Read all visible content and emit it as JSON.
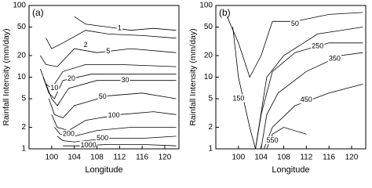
{
  "chart_data": [
    {
      "type": "contour",
      "panel_label": "(a)",
      "xlabel": "Longitude",
      "ylabel": "Rainfall Intensity (mm/day)",
      "xlim": [
        96,
        122.5
      ],
      "xticks": [
        100,
        104,
        108,
        112,
        116,
        120
      ],
      "ylim": [
        1,
        100
      ],
      "yticks": [
        1,
        2,
        5,
        10,
        20,
        50,
        100
      ],
      "log_y": true,
      "contours": [
        {
          "level": 1,
          "x": [
            104,
            106,
            110,
            114,
            118,
            122
          ],
          "y": [
            70,
            55,
            50,
            45,
            48,
            45
          ]
        },
        {
          "level": 2,
          "x": [
            99,
            100,
            102,
            106,
            110,
            116,
            122
          ],
          "y": [
            35,
            25,
            30,
            45,
            40,
            38,
            35
          ]
        },
        {
          "level": 5,
          "x": [
            98,
            99,
            101,
            104,
            108,
            114,
            122
          ],
          "y": [
            20,
            15,
            14,
            25,
            22,
            25,
            22
          ]
        },
        {
          "level": 10,
          "x": [
            98,
            99,
            100,
            102,
            106,
            112,
            122
          ],
          "y": [
            13,
            8,
            7,
            12,
            15,
            15,
            14
          ]
        },
        {
          "level": 20,
          "x": [
            98.5,
            99.5,
            100.5,
            102,
            107,
            113,
            122
          ],
          "y": [
            10,
            6,
            5,
            9,
            11,
            11,
            11
          ]
        },
        {
          "level": 30,
          "x": [
            99,
            100,
            101,
            103,
            108,
            114,
            122
          ],
          "y": [
            8,
            5,
            4,
            7,
            9,
            9,
            9
          ]
        },
        {
          "level": 50,
          "x": [
            99.5,
            100.5,
            102,
            104,
            110,
            116,
            122
          ],
          "y": [
            5,
            3,
            2.7,
            4,
            5.5,
            6,
            5
          ]
        },
        {
          "level": 100,
          "x": [
            100,
            101,
            103,
            106,
            112,
            118,
            122
          ],
          "y": [
            3,
            2,
            1.8,
            2.5,
            3,
            3.3,
            3
          ]
        },
        {
          "level": 200,
          "x": [
            100.5,
            101.5,
            104,
            108,
            114,
            120,
            122
          ],
          "y": [
            2,
            1.6,
            1.5,
            1.8,
            2,
            2,
            2
          ]
        },
        {
          "level": 500,
          "x": [
            101,
            102,
            104,
            110,
            116,
            122
          ],
          "y": [
            1.5,
            1.3,
            1.25,
            1.4,
            1.4,
            1.5
          ]
        },
        {
          "level": 1000,
          "x": [
            102,
            105,
            110,
            116,
            122
          ],
          "y": [
            1.1,
            1.1,
            1.15,
            1.15,
            1.1
          ]
        }
      ],
      "contour_labels": [
        {
          "value": 1,
          "x": 112,
          "y": 48
        },
        {
          "value": 2,
          "x": 106,
          "y": 28
        },
        {
          "value": 5,
          "x": 110,
          "y": 23
        },
        {
          "value": 10,
          "x": 100.5,
          "y": 7
        },
        {
          "value": 20,
          "x": 103.5,
          "y": 9.5
        },
        {
          "value": 30,
          "x": 113,
          "y": 9
        },
        {
          "value": 50,
          "x": 109,
          "y": 5.3
        },
        {
          "value": 100,
          "x": 111,
          "y": 2.9
        },
        {
          "value": 200,
          "x": 103,
          "y": 1.6
        },
        {
          "value": 500,
          "x": 109,
          "y": 1.4
        },
        {
          "value": 1000,
          "x": 106.5,
          "y": 1.12
        }
      ]
    },
    {
      "type": "contour",
      "panel_label": "(b)",
      "xlabel": "Longitude",
      "ylabel": "Rainfall Intensity (mm/day)",
      "xlim": [
        96,
        122.5
      ],
      "xticks": [
        100,
        104,
        108,
        112,
        116,
        120
      ],
      "ylim": [
        1,
        100
      ],
      "yticks": [
        1,
        2,
        5,
        10,
        20,
        50,
        100
      ],
      "log_y": true,
      "contours": [
        {
          "level": 50,
          "x": [
            98,
            100,
            102,
            104,
            106,
            110,
            116,
            122
          ],
          "y": [
            70,
            30,
            10,
            20,
            60,
            60,
            75,
            80
          ]
        },
        {
          "level": 150,
          "x": [
            99,
            100,
            102,
            103,
            105,
            108,
            114,
            122
          ],
          "y": [
            50,
            10,
            2,
            1,
            10,
            20,
            40,
            50
          ]
        },
        {
          "level": 250,
          "x": [
            103,
            104,
            106,
            110,
            116,
            122
          ],
          "y": [
            1,
            3,
            12,
            22,
            30,
            30
          ]
        },
        {
          "level": 350,
          "x": [
            104,
            105,
            107,
            112,
            118,
            122
          ],
          "y": [
            1,
            3,
            6,
            12,
            20,
            22
          ]
        },
        {
          "level": 450,
          "x": [
            104.5,
            106,
            110,
            116,
            122
          ],
          "y": [
            1,
            2,
            4,
            6,
            8
          ]
        },
        {
          "level": 550,
          "x": [
            105,
            106,
            108,
            112
          ],
          "y": [
            1,
            1.6,
            2,
            1.6
          ]
        }
      ],
      "contour_labels": [
        {
          "value": 50,
          "x": 110,
          "y": 55
        },
        {
          "value": 150,
          "x": 100,
          "y": 5
        },
        {
          "value": 250,
          "x": 114,
          "y": 27
        },
        {
          "value": 350,
          "x": 117,
          "y": 18
        },
        {
          "value": 450,
          "x": 112,
          "y": 4.8
        },
        {
          "value": 550,
          "x": 106,
          "y": 1.3
        }
      ]
    }
  ]
}
